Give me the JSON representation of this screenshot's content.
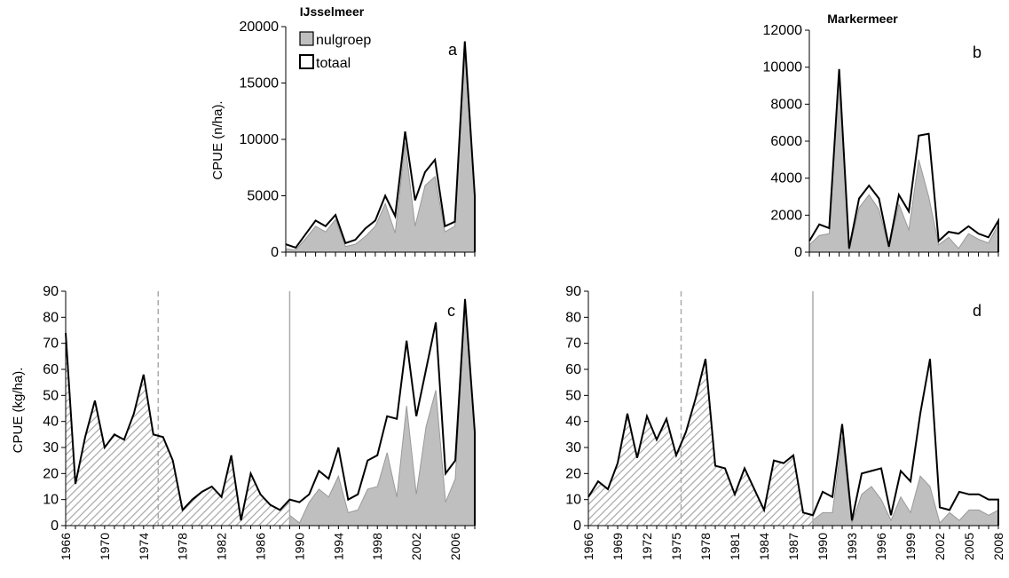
{
  "chart_data": [
    {
      "panel": "a",
      "type": "area",
      "title": "IJsselmeer",
      "ylabel": "CPUE (n/ha).",
      "ylim": [
        0,
        20000
      ],
      "yticks": [
        "0",
        "5000",
        "10000",
        "15000",
        "20000"
      ],
      "x": [
        1989,
        1990,
        1991,
        1992,
        1993,
        1994,
        1995,
        1996,
        1997,
        1998,
        1999,
        2000,
        2001,
        2002,
        2003,
        2004,
        2005,
        2006,
        2007,
        2008
      ],
      "series": [
        {
          "name": "nulgroep",
          "values": [
            300,
            200,
            1200,
            2300,
            1800,
            2900,
            500,
            700,
            1400,
            2300,
            4300,
            1700,
            9700,
            2300,
            5900,
            6700,
            1800,
            2300,
            17800,
            4900
          ]
        },
        {
          "name": "totaal",
          "values": [
            700,
            400,
            1600,
            2800,
            2300,
            3300,
            800,
            1100,
            2100,
            2800,
            5000,
            3200,
            10700,
            4600,
            7100,
            8200,
            2300,
            2700,
            18700,
            5000
          ]
        }
      ],
      "legend": "top-left"
    },
    {
      "panel": "b",
      "type": "area",
      "title": "Markermeer",
      "ylabel": "",
      "ylim": [
        0,
        12000
      ],
      "yticks": [
        "0",
        "2000",
        "4000",
        "6000",
        "8000",
        "10000",
        "12000"
      ],
      "x": [
        1989,
        1990,
        1991,
        1992,
        1993,
        1994,
        1995,
        1996,
        1997,
        1998,
        1999,
        2000,
        2001,
        2002,
        2003,
        2004,
        2005,
        2006,
        2007,
        2008
      ],
      "series": [
        {
          "name": "nulgroep",
          "values": [
            400,
            900,
            1000,
            9700,
            100,
            2400,
            3100,
            2300,
            200,
            2600,
            1200,
            5000,
            3000,
            400,
            800,
            200,
            1000,
            700,
            500,
            1500
          ]
        },
        {
          "name": "totaal",
          "values": [
            600,
            1500,
            1300,
            9900,
            200,
            2900,
            3600,
            2900,
            300,
            3100,
            2200,
            6300,
            6400,
            600,
            1100,
            1000,
            1400,
            1000,
            800,
            1700
          ]
        }
      ]
    },
    {
      "panel": "c",
      "type": "area",
      "ylabel": "CPUE (kg/ha).",
      "ylim": [
        0,
        90
      ],
      "yticks": [
        "0",
        "10",
        "20",
        "30",
        "40",
        "50",
        "60",
        "70",
        "80",
        "90"
      ],
      "xticks": [
        "1966",
        "1970",
        "1974",
        "1978",
        "1982",
        "1986",
        "1990",
        "1994",
        "1998",
        "2002",
        "2006"
      ],
      "xlim": [
        1966,
        2008
      ],
      "dashed_line_x": 1975.5,
      "solid_line_x": 1989,
      "x": [
        1966,
        1967,
        1968,
        1969,
        1970,
        1971,
        1972,
        1973,
        1974,
        1975,
        1976,
        1977,
        1978,
        1979,
        1980,
        1981,
        1982,
        1983,
        1984,
        1985,
        1986,
        1987,
        1988,
        1989,
        1990,
        1991,
        1992,
        1993,
        1994,
        1995,
        1996,
        1997,
        1998,
        1999,
        2000,
        2001,
        2002,
        2003,
        2004,
        2005,
        2006,
        2007,
        2008
      ],
      "series": [
        {
          "name": "totaal",
          "values": [
            74,
            16,
            34,
            48,
            30,
            35,
            33,
            43,
            58,
            35,
            34,
            25,
            6,
            10,
            13,
            15,
            11,
            27,
            2,
            20,
            12,
            8,
            6,
            10,
            9,
            12,
            21,
            18,
            30,
            10,
            12,
            25,
            27,
            42,
            41,
            71,
            42,
            60,
            78,
            20,
            25,
            87,
            36
          ]
        },
        {
          "name": "nulgroep",
          "values": [
            null,
            null,
            null,
            null,
            null,
            null,
            null,
            null,
            null,
            null,
            null,
            null,
            null,
            null,
            null,
            null,
            null,
            null,
            null,
            null,
            null,
            null,
            null,
            4,
            1,
            9,
            14,
            11,
            19,
            5,
            6,
            14,
            15,
            28,
            11,
            46,
            12,
            38,
            52,
            9,
            18,
            85,
            36
          ]
        }
      ]
    },
    {
      "panel": "d",
      "type": "area",
      "ylabel": "",
      "ylim": [
        0,
        90
      ],
      "yticks": [
        "0",
        "10",
        "20",
        "30",
        "40",
        "50",
        "60",
        "70",
        "80",
        "90"
      ],
      "xticks": [
        "1966",
        "1969",
        "1972",
        "1975",
        "1978",
        "1981",
        "1984",
        "1987",
        "1990",
        "1993",
        "1996",
        "1999",
        "2002",
        "2005",
        "2008"
      ],
      "xlim": [
        1966,
        2008
      ],
      "dashed_line_x": 1975.5,
      "solid_line_x": 1989,
      "x": [
        1966,
        1967,
        1968,
        1969,
        1970,
        1971,
        1972,
        1973,
        1974,
        1975,
        1976,
        1977,
        1978,
        1979,
        1980,
        1981,
        1982,
        1983,
        1984,
        1985,
        1986,
        1987,
        1988,
        1989,
        1990,
        1991,
        1992,
        1993,
        1994,
        1995,
        1996,
        1997,
        1998,
        1999,
        2000,
        2001,
        2002,
        2003,
        2004,
        2005,
        2006,
        2007,
        2008
      ],
      "series": [
        {
          "name": "totaal",
          "values": [
            11,
            17,
            14,
            24,
            43,
            26,
            42,
            33,
            41,
            27,
            36,
            49,
            64,
            23,
            22,
            12,
            22,
            14,
            6,
            25,
            24,
            27,
            5,
            4,
            13,
            11,
            39,
            2,
            20,
            21,
            22,
            4,
            21,
            17,
            43,
            64,
            7,
            6,
            13,
            12,
            12,
            10,
            10
          ]
        },
        {
          "name": "nulgroep",
          "values": [
            null,
            null,
            null,
            null,
            null,
            null,
            null,
            null,
            null,
            null,
            null,
            null,
            null,
            null,
            null,
            null,
            null,
            null,
            null,
            null,
            null,
            null,
            null,
            2,
            5,
            5,
            34,
            1,
            12,
            15,
            10,
            2,
            11,
            5,
            19,
            15,
            1,
            5,
            2,
            6,
            6,
            4,
            6
          ]
        }
      ]
    }
  ],
  "labels": {
    "panel_a_letter": "a",
    "panel_b_letter": "b",
    "panel_c_letter": "c",
    "panel_d_letter": "d",
    "legend_nulgroep": "nulgroep",
    "legend_totaal": "totaal"
  },
  "colors": {
    "nulgroep_fill": "#bfbfbf",
    "line": "#000000",
    "hatch": "#a6a6a6",
    "divider": "#a6a6a6"
  }
}
